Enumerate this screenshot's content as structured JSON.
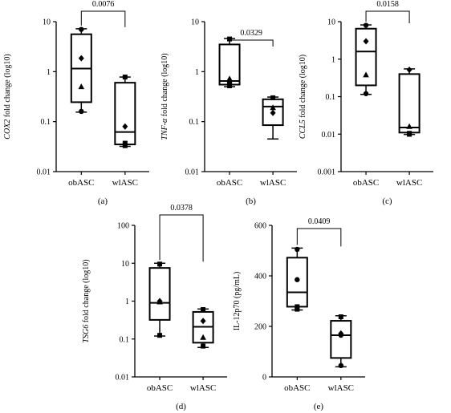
{
  "figure": {
    "panels": [
      {
        "id": "a",
        "letter": "(a)",
        "ylabel_italic": "COX2",
        "ylabel_rest": " fold change (log10)",
        "scale": "log",
        "yticks": [
          {
            "value": 0.01,
            "label": "0.01"
          },
          {
            "value": 0.1,
            "label": "0.1"
          },
          {
            "value": 1,
            "label": "1"
          },
          {
            "value": 10,
            "label": "10"
          }
        ],
        "ylim": [
          0.01,
          10
        ],
        "pvalue": "0.0076",
        "categories": [
          "obASC",
          "wlASC"
        ],
        "groups": [
          {
            "category": "obASC",
            "min": 0.155,
            "q1": 0.245,
            "median": 1.15,
            "q3": 5.6,
            "max": 7.2,
            "points": [
              {
                "shape": "circle",
                "value": 7.0
              },
              {
                "shape": "diamond",
                "value": 1.85
              },
              {
                "shape": "triangle",
                "value": 0.5
              },
              {
                "shape": "circle",
                "value": 0.16
              }
            ]
          },
          {
            "category": "wlASC",
            "min": 0.032,
            "q1": 0.035,
            "median": 0.062,
            "q3": 0.6,
            "max": 0.78,
            "points": [
              {
                "shape": "square",
                "value": 0.78
              },
              {
                "shape": "diamond",
                "value": 0.08
              },
              {
                "shape": "square",
                "value": 0.037
              },
              {
                "shape": "square",
                "value": 0.033
              }
            ]
          }
        ]
      },
      {
        "id": "b",
        "letter": "(b)",
        "ylabel_italic": "TNF-α",
        "ylabel_rest": " fold change (log10)",
        "scale": "log",
        "yticks": [
          {
            "value": 0.01,
            "label": "0.01"
          },
          {
            "value": 0.1,
            "label": "0.1"
          },
          {
            "value": 1,
            "label": "1"
          },
          {
            "value": 10,
            "label": "10"
          }
        ],
        "ylim": [
          0.01,
          10
        ],
        "pvalue": "0.0329",
        "categories": [
          "obASC",
          "wlASC"
        ],
        "groups": [
          {
            "category": "obASC",
            "min": 0.5,
            "q1": 0.55,
            "median": 0.65,
            "q3": 3.5,
            "max": 4.6,
            "points": [
              {
                "shape": "square",
                "value": 4.5
              },
              {
                "shape": "triangle",
                "value": 0.72
              },
              {
                "shape": "circle",
                "value": 0.6
              },
              {
                "shape": "square",
                "value": 0.52
              }
            ]
          },
          {
            "category": "wlASC",
            "min": 0.045,
            "q1": 0.085,
            "median": 0.2,
            "q3": 0.28,
            "max": 0.31,
            "points": [
              {
                "shape": "square",
                "value": 0.3
              },
              {
                "shape": "triangle",
                "value": 0.19
              },
              {
                "shape": "diamond",
                "value": 0.15
              }
            ]
          }
        ]
      },
      {
        "id": "c",
        "letter": "(c)",
        "ylabel_italic": "CCL5",
        "ylabel_rest": " fold change (log10)",
        "scale": "log",
        "yticks": [
          {
            "value": 0.001,
            "label": "0.001"
          },
          {
            "value": 0.01,
            "label": "0.01"
          },
          {
            "value": 0.1,
            "label": "0.1"
          },
          {
            "value": 1,
            "label": "1"
          },
          {
            "value": 10,
            "label": "10"
          }
        ],
        "ylim": [
          0.001,
          10
        ],
        "pvalue": "0.0158",
        "categories": [
          "obASC",
          "wlASC"
        ],
        "groups": [
          {
            "category": "obASC",
            "min": 0.115,
            "q1": 0.2,
            "median": 1.6,
            "q3": 6.5,
            "max": 8.2,
            "points": [
              {
                "shape": "circle",
                "value": 8.0
              },
              {
                "shape": "diamond",
                "value": 3.0
              },
              {
                "shape": "triangle",
                "value": 0.38
              },
              {
                "shape": "circle",
                "value": 0.12
              }
            ]
          },
          {
            "category": "wlASC",
            "min": 0.0098,
            "q1": 0.011,
            "median": 0.015,
            "q3": 0.4,
            "max": 0.55,
            "points": [
              {
                "shape": "diamond",
                "value": 0.52
              },
              {
                "shape": "triangle",
                "value": 0.016
              },
              {
                "shape": "square",
                "value": 0.0105
              },
              {
                "shape": "square",
                "value": 0.0099
              }
            ]
          }
        ]
      },
      {
        "id": "d",
        "letter": "(d)",
        "ylabel_italic": "TSG6",
        "ylabel_rest": " fold change (log10)",
        "scale": "log",
        "yticks": [
          {
            "value": 0.01,
            "label": "0.01"
          },
          {
            "value": 0.1,
            "label": "0.1"
          },
          {
            "value": 1,
            "label": "1"
          },
          {
            "value": 10,
            "label": "10"
          },
          {
            "value": 100,
            "label": "100"
          }
        ],
        "ylim": [
          0.01,
          100
        ],
        "pvalue": "0.0378",
        "categories": [
          "obASC",
          "wlASC"
        ],
        "groups": [
          {
            "category": "obASC",
            "min": 0.12,
            "q1": 0.32,
            "median": 0.9,
            "q3": 7.5,
            "max": 10,
            "points": [
              {
                "shape": "square",
                "value": 9.5
              },
              {
                "shape": "diamond",
                "value": 1.0
              },
              {
                "shape": "triangle",
                "value": 0.95
              },
              {
                "shape": "square",
                "value": 0.125
              }
            ]
          },
          {
            "category": "wlASC",
            "min": 0.06,
            "q1": 0.08,
            "median": 0.21,
            "q3": 0.52,
            "max": 0.62,
            "points": [
              {
                "shape": "square",
                "value": 0.6
              },
              {
                "shape": "diamond",
                "value": 0.3
              },
              {
                "shape": "triangle",
                "value": 0.11
              },
              {
                "shape": "square",
                "value": 0.065
              }
            ]
          }
        ]
      },
      {
        "id": "e",
        "letter": "(e)",
        "ylabel_italic": "",
        "ylabel_rest": "IL-12p70 (pg/mL)",
        "scale": "linear",
        "yticks": [
          {
            "value": 0,
            "label": "0"
          },
          {
            "value": 200,
            "label": "200"
          },
          {
            "value": 400,
            "label": "400"
          },
          {
            "value": 600,
            "label": "600"
          }
        ],
        "ylim": [
          0,
          600
        ],
        "pvalue": "0.0409",
        "categories": [
          "obASC",
          "wlASC"
        ],
        "groups": [
          {
            "category": "obASC",
            "min": 265,
            "q1": 278,
            "median": 335,
            "q3": 472,
            "max": 510,
            "points": [
              {
                "shape": "circle",
                "value": 505
              },
              {
                "shape": "circle",
                "value": 385
              },
              {
                "shape": "square",
                "value": 278
              },
              {
                "shape": "square",
                "value": 268
              }
            ]
          },
          {
            "category": "wlASC",
            "min": 40,
            "q1": 75,
            "median": 165,
            "q3": 222,
            "max": 242,
            "points": [
              {
                "shape": "square",
                "value": 238
              },
              {
                "shape": "diamond",
                "value": 172
              },
              {
                "shape": "circle",
                "value": 165
              },
              {
                "shape": "circle",
                "value": 45
              }
            ]
          }
        ]
      }
    ]
  },
  "chart_data": [
    {
      "type": "box",
      "panel": "(a)",
      "ylabel": "COX2 fold change (log10)",
      "yscale": "log",
      "ylim": [
        0.01,
        10
      ],
      "categories": [
        "obASC",
        "wlASC"
      ],
      "annotation": "0.0076",
      "series": [
        {
          "category": "obASC",
          "min": 0.155,
          "q1": 0.245,
          "median": 1.15,
          "q3": 5.6,
          "max": 7.2
        },
        {
          "category": "wlASC",
          "min": 0.032,
          "q1": 0.035,
          "median": 0.062,
          "q3": 0.6,
          "max": 0.78
        }
      ]
    },
    {
      "type": "box",
      "panel": "(b)",
      "ylabel": "TNF-α fold change (log10)",
      "yscale": "log",
      "ylim": [
        0.01,
        10
      ],
      "categories": [
        "obASC",
        "wlASC"
      ],
      "annotation": "0.0329",
      "series": [
        {
          "category": "obASC",
          "min": 0.5,
          "q1": 0.55,
          "median": 0.65,
          "q3": 3.5,
          "max": 4.6
        },
        {
          "category": "wlASC",
          "min": 0.045,
          "q1": 0.085,
          "median": 0.2,
          "q3": 0.28,
          "max": 0.31
        }
      ]
    },
    {
      "type": "box",
      "panel": "(c)",
      "ylabel": "CCL5 fold change (log10)",
      "yscale": "log",
      "ylim": [
        0.001,
        10
      ],
      "categories": [
        "obASC",
        "wlASC"
      ],
      "annotation": "0.0158",
      "series": [
        {
          "category": "obASC",
          "min": 0.115,
          "q1": 0.2,
          "median": 1.6,
          "q3": 6.5,
          "max": 8.2
        },
        {
          "category": "wlASC",
          "min": 0.0098,
          "q1": 0.011,
          "median": 0.015,
          "q3": 0.4,
          "max": 0.55
        }
      ]
    },
    {
      "type": "box",
      "panel": "(d)",
      "ylabel": "TSG6 fold change (log10)",
      "yscale": "log",
      "ylim": [
        0.01,
        100
      ],
      "categories": [
        "obASC",
        "wlASC"
      ],
      "annotation": "0.0378",
      "series": [
        {
          "category": "obASC",
          "min": 0.12,
          "q1": 0.32,
          "median": 0.9,
          "q3": 7.5,
          "max": 10
        },
        {
          "category": "wlASC",
          "min": 0.06,
          "q1": 0.08,
          "median": 0.21,
          "q3": 0.52,
          "max": 0.62
        }
      ]
    },
    {
      "type": "box",
      "panel": "(e)",
      "ylabel": "IL-12p70 (pg/mL)",
      "yscale": "linear",
      "ylim": [
        0,
        600
      ],
      "categories": [
        "obASC",
        "wlASC"
      ],
      "annotation": "0.0409",
      "series": [
        {
          "category": "obASC",
          "min": 265,
          "q1": 278,
          "median": 335,
          "q3": 472,
          "max": 510
        },
        {
          "category": "wlASC",
          "min": 40,
          "q1": 75,
          "median": 165,
          "q3": 222,
          "max": 242
        }
      ]
    }
  ]
}
